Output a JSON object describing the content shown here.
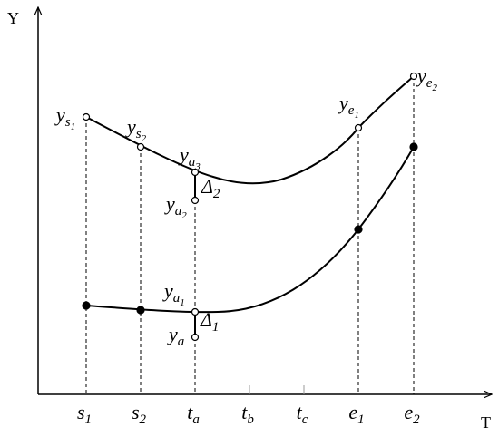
{
  "axes": {
    "y_label": "Y",
    "x_label": "T"
  },
  "x_ticks": [
    {
      "base": "s",
      "sub": "1"
    },
    {
      "base": "s",
      "sub": "2"
    },
    {
      "base": "t",
      "sub": "a"
    },
    {
      "base": "t",
      "sub": "b"
    },
    {
      "base": "t",
      "sub": "c"
    },
    {
      "base": "e",
      "sub": "1"
    },
    {
      "base": "e",
      "sub": "2"
    }
  ],
  "point_labels": [
    {
      "base": "y",
      "sub": "s",
      "subsub": "1"
    },
    {
      "base": "y",
      "sub": "s",
      "subsub": "2"
    },
    {
      "base": "y",
      "sub": "a",
      "subsub": "3"
    },
    {
      "base": "Δ",
      "sub": "2"
    },
    {
      "base": "y",
      "sub": "a",
      "subsub": "2"
    },
    {
      "base": "y",
      "sub": "e",
      "subsub": "1"
    },
    {
      "base": "y",
      "sub": "e",
      "subsub": "2"
    },
    {
      "base": "y",
      "sub": "a",
      "subsub": "1"
    },
    {
      "base": "Δ",
      "sub": "1"
    },
    {
      "base": "y",
      "sub": "a"
    }
  ]
}
